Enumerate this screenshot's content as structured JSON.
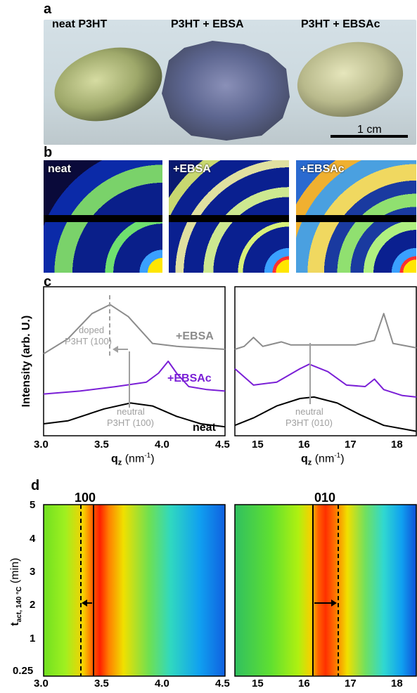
{
  "figure": {
    "panel_a": {
      "label": "a",
      "sample_labels": [
        "neat P3HT",
        "P3HT + EBSA",
        "P3HT + EBSAc"
      ],
      "scalebar_label": "1 cm"
    },
    "panel_b": {
      "label": "b",
      "image_labels": [
        "neat",
        "+EBSA",
        "+EBSAc"
      ]
    },
    "panel_c": {
      "label": "c",
      "ylabel": "Intensity (arb. U.)",
      "xlabel_main": "q",
      "xlabel_sub": "z",
      "xlabel_unit": " (nm",
      "xlabel_exp": "-1",
      "xlabel_close": ")",
      "left_ticks": [
        "3.0",
        "3.5",
        "4.0",
        "4.5"
      ],
      "right_ticks": [
        "15",
        "16",
        "17",
        "18"
      ],
      "annotations": {
        "doped_line1": "doped",
        "doped_line2": "P3HT (100)",
        "neutral_line1": "neutral",
        "neutral_left_line2": "P3HT (100)",
        "neutral_right_line2": "P3HT (010)",
        "ebsa": "+EBSA",
        "ebsac": "+EBSAc",
        "neat": "neat"
      }
    },
    "panel_d": {
      "label": "d",
      "ylabel_main": "t",
      "ylabel_sub": "act, 140 °C",
      "ylabel_unit": " (min)",
      "y_ticks": [
        "5",
        "4",
        "3",
        "2",
        "1",
        "0.25"
      ],
      "left_x_ticks": [
        "3.0",
        "3.5",
        "4.0",
        "4.5"
      ],
      "right_x_ticks": [
        "15",
        "16",
        "17",
        "18"
      ],
      "peak_left": "100",
      "peak_right": "010",
      "xlabel_main": "q",
      "xlabel_sub": "z",
      "xlabel_unit": " (nm",
      "xlabel_exp": "-1",
      "xlabel_close": ")"
    },
    "colors": {
      "neat": "#000000",
      "ebsa": "#8c8c8c",
      "ebsac": "#7a1fd6",
      "annotation_gray": "#a0a0a0"
    }
  },
  "chart_data": [
    {
      "type": "line",
      "panel": "c-left",
      "xlabel": "qz (nm-1)",
      "ylabel": "Intensity (arb. U.)",
      "xlim": [
        3.0,
        4.5
      ],
      "series": [
        {
          "name": "+EBSA",
          "x": [
            3.0,
            3.2,
            3.4,
            3.55,
            3.7,
            3.9,
            4.1,
            4.3,
            4.5
          ],
          "values": [
            0.55,
            0.65,
            0.82,
            0.88,
            0.8,
            0.62,
            0.6,
            0.59,
            0.58
          ]
        },
        {
          "name": "+EBSAc",
          "x": [
            3.0,
            3.3,
            3.6,
            3.85,
            3.95,
            4.03,
            4.1,
            4.2,
            4.35,
            4.5
          ],
          "values": [
            0.28,
            0.3,
            0.33,
            0.36,
            0.42,
            0.5,
            0.42,
            0.33,
            0.31,
            0.3
          ]
        },
        {
          "name": "neat",
          "x": [
            3.0,
            3.2,
            3.5,
            3.72,
            3.9,
            4.1,
            4.3,
            4.5
          ],
          "values": [
            0.08,
            0.1,
            0.18,
            0.22,
            0.2,
            0.13,
            0.08,
            0.06
          ]
        }
      ]
    },
    {
      "type": "line",
      "panel": "c-right",
      "xlabel": "qz (nm-1)",
      "xlim": [
        14.6,
        18.5
      ],
      "series": [
        {
          "name": "+EBSA",
          "x": [
            14.6,
            14.8,
            15.0,
            15.2,
            15.6,
            15.8,
            16.5,
            17.2,
            17.6,
            17.8,
            18.0,
            18.5
          ],
          "values": [
            0.58,
            0.6,
            0.66,
            0.6,
            0.63,
            0.61,
            0.61,
            0.61,
            0.64,
            0.82,
            0.62,
            0.59
          ]
        },
        {
          "name": "+EBSAc",
          "x": [
            14.6,
            15.0,
            15.5,
            16.0,
            16.2,
            16.6,
            17.0,
            17.4,
            17.6,
            17.8,
            18.2,
            18.5
          ],
          "values": [
            0.45,
            0.34,
            0.36,
            0.45,
            0.48,
            0.43,
            0.34,
            0.33,
            0.38,
            0.31,
            0.27,
            0.26
          ]
        },
        {
          "name": "neat",
          "x": [
            14.6,
            15.0,
            15.5,
            16.0,
            16.3,
            16.8,
            17.3,
            17.8,
            18.5
          ],
          "values": [
            0.07,
            0.12,
            0.2,
            0.25,
            0.26,
            0.22,
            0.14,
            0.07,
            0.03
          ]
        }
      ]
    },
    {
      "type": "heatmap",
      "panel": "d",
      "xlabel": "qz (nm-1)",
      "ylabel": "tact, 140 °C (min)",
      "left_xlim": [
        3.0,
        4.5
      ],
      "right_xlim": [
        14.6,
        18.5
      ],
      "ylim": [
        0.25,
        5
      ]
    }
  ]
}
